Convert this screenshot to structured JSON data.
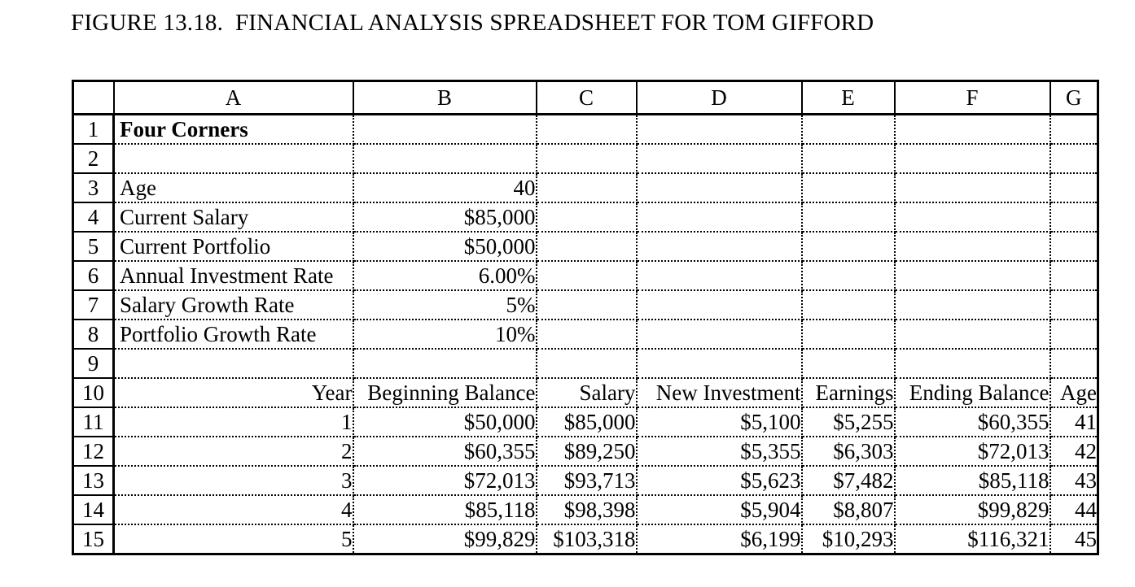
{
  "figure_caption": "FIGURE 13.18.  FINANCIAL ANALYSIS SPREADSHEET FOR TOM GIFFORD",
  "spreadsheet": {
    "title_cell": "Four Corners",
    "column_letters": [
      "A",
      "B",
      "C",
      "D",
      "E",
      "F",
      "G"
    ],
    "rows": [
      {
        "num": "1",
        "cells": [
          "Four Corners",
          "",
          "",
          "",
          "",
          "",
          ""
        ]
      },
      {
        "num": "2",
        "cells": [
          "",
          "",
          "",
          "",
          "",
          "",
          ""
        ]
      },
      {
        "num": "3",
        "cells": [
          "Age",
          "40",
          "",
          "",
          "",
          "",
          ""
        ]
      },
      {
        "num": "4",
        "cells": [
          "Current Salary",
          "$85,000",
          "",
          "",
          "",
          "",
          ""
        ]
      },
      {
        "num": "5",
        "cells": [
          "Current Portfolio",
          "$50,000",
          "",
          "",
          "",
          "",
          ""
        ]
      },
      {
        "num": "6",
        "cells": [
          "Annual Investment Rate",
          "6.00%",
          "",
          "",
          "",
          "",
          ""
        ]
      },
      {
        "num": "7",
        "cells": [
          "Salary Growth Rate",
          "5%",
          "",
          "",
          "",
          "",
          ""
        ]
      },
      {
        "num": "8",
        "cells": [
          "Portfolio Growth Rate",
          "10%",
          "",
          "",
          "",
          "",
          ""
        ]
      },
      {
        "num": "9",
        "cells": [
          "",
          "",
          "",
          "",
          "",
          "",
          ""
        ]
      },
      {
        "num": "10",
        "cells": [
          "Year",
          "Beginning Balance",
          "Salary",
          "New Investment",
          "Earnings",
          "Ending Balance",
          "Age"
        ]
      },
      {
        "num": "11",
        "cells": [
          "1",
          "$50,000",
          "$85,000",
          "$5,100",
          "$5,255",
          "$60,355",
          "41"
        ]
      },
      {
        "num": "12",
        "cells": [
          "2",
          "$60,355",
          "$89,250",
          "$5,355",
          "$6,303",
          "$72,013",
          "42"
        ]
      },
      {
        "num": "13",
        "cells": [
          "3",
          "$72,013",
          "$93,713",
          "$5,623",
          "$7,482",
          "$85,118",
          "43"
        ]
      },
      {
        "num": "14",
        "cells": [
          "4",
          "$85,118",
          "$98,398",
          "$5,904",
          "$8,807",
          "$99,829",
          "44"
        ]
      },
      {
        "num": "15",
        "cells": [
          "5",
          "$99,829",
          "$103,318",
          "$6,199",
          "$10,293",
          "$116,321",
          "45"
        ]
      }
    ]
  }
}
